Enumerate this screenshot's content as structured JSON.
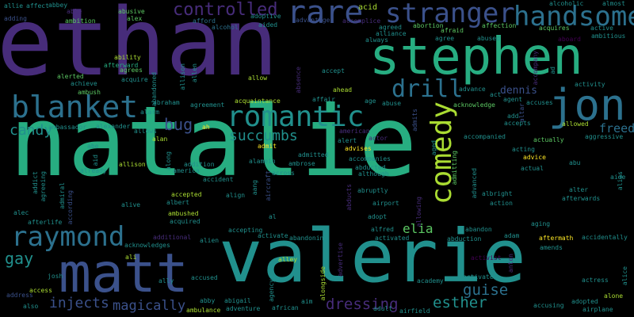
{
  "colors": {
    "background": "#000000",
    "palette": [
      "#440154",
      "#472c7a",
      "#3b518b",
      "#2c718e",
      "#21908d",
      "#27ad81",
      "#5cc863",
      "#aadc32",
      "#fde725"
    ]
  },
  "words": [
    {
      "text": "natalie",
      "color": "#27ad81"
    },
    {
      "text": "ethan",
      "color": "#472c7a"
    },
    {
      "text": "stephen",
      "color": "#27ad81"
    },
    {
      "text": "valerie",
      "color": "#21908d"
    },
    {
      "text": "matt",
      "color": "#3b518b"
    },
    {
      "text": "jon",
      "color": "#2c718e"
    },
    {
      "text": "handsome",
      "color": "#2c718e"
    },
    {
      "text": "stranger",
      "color": "#3b518b"
    },
    {
      "text": "rare",
      "color": "#3b518b"
    },
    {
      "text": "blanket",
      "color": "#2c718e"
    },
    {
      "text": "romantic",
      "color": "#21908d"
    },
    {
      "text": "drill",
      "color": "#2c718e"
    },
    {
      "text": "comedy",
      "color": "#aadc32"
    },
    {
      "text": "raymond",
      "color": "#2c718e"
    },
    {
      "text": "controlled",
      "color": "#472c7a"
    },
    {
      "text": "bug",
      "color": "#3b518b"
    },
    {
      "text": "succumbs",
      "color": "#21908d"
    },
    {
      "text": "candy",
      "color": "#21908d"
    },
    {
      "text": "gay",
      "color": "#21908d"
    },
    {
      "text": "injects",
      "color": "#3b518b"
    },
    {
      "text": "magically",
      "color": "#3b518b"
    },
    {
      "text": "dressing",
      "color": "#472c7a"
    },
    {
      "text": "esther",
      "color": "#21908d"
    },
    {
      "text": "guise",
      "color": "#2c718e"
    },
    {
      "text": "elia",
      "color": "#5cc863"
    },
    {
      "text": "freed",
      "color": "#2c718e"
    },
    {
      "text": "dennis",
      "color": "#3b518b"
    },
    {
      "text": "acid",
      "color": "#aadc32"
    },
    {
      "text": "alcoholic",
      "color": "#21908d"
    },
    {
      "text": "almost",
      "color": "#21908d"
    },
    {
      "text": "allie",
      "color": "#21908d"
    },
    {
      "text": "affect",
      "color": "#21908d"
    },
    {
      "text": "abbey",
      "color": "#21908d"
    },
    {
      "text": "able",
      "color": "#472c7a"
    },
    {
      "text": "abusive",
      "color": "#5cc863"
    },
    {
      "text": "alex",
      "color": "#5cc863"
    },
    {
      "text": "adding",
      "color": "#3b518b"
    },
    {
      "text": "ambition",
      "color": "#5cc863"
    },
    {
      "text": "afford",
      "color": "#2c718e"
    },
    {
      "text": "alcohol",
      "color": "#2c718e"
    },
    {
      "text": "adoptive",
      "color": "#21908d"
    },
    {
      "text": "aided",
      "color": "#21908d"
    },
    {
      "text": "advantage",
      "color": "#3b518b"
    },
    {
      "text": "accomplice",
      "color": "#472c7a"
    },
    {
      "text": "agreed",
      "color": "#21908d"
    },
    {
      "text": "alliance",
      "color": "#21908d"
    },
    {
      "text": "always",
      "color": "#21908d"
    },
    {
      "text": "abortion",
      "color": "#5cc863"
    },
    {
      "text": "afraid",
      "color": "#5cc863"
    },
    {
      "text": "affection",
      "color": "#5cc863"
    },
    {
      "text": "acquires",
      "color": "#5cc863"
    },
    {
      "text": "active",
      "color": "#21908d"
    },
    {
      "text": "ambitious",
      "color": "#21908d"
    },
    {
      "text": "abused",
      "color": "#21908d"
    },
    {
      "text": "agree",
      "color": "#21908d"
    },
    {
      "text": "aboard",
      "color": "#440154"
    },
    {
      "text": "ability",
      "color": "#aadc32"
    },
    {
      "text": "agrees",
      "color": "#5cc863"
    },
    {
      "text": "afterward",
      "color": "#27ad81"
    },
    {
      "text": "acquire",
      "color": "#21908d"
    },
    {
      "text": "alerted",
      "color": "#5cc863"
    },
    {
      "text": "achieve",
      "color": "#21908d"
    },
    {
      "text": "ambush",
      "color": "#5cc863"
    },
    {
      "text": "allison",
      "color": "#21908d"
    },
    {
      "text": "allen",
      "color": "#21908d"
    },
    {
      "text": "allow",
      "color": "#aadc32"
    },
    {
      "text": "absence",
      "color": "#472c7a"
    },
    {
      "text": "accept",
      "color": "#21908d"
    },
    {
      "text": "advance",
      "color": "#21908d"
    },
    {
      "text": "act",
      "color": "#21908d"
    },
    {
      "text": "activity",
      "color": "#21908d"
    },
    {
      "text": "abandoned",
      "color": "#21908d"
    },
    {
      "text": "abraham",
      "color": "#21908d"
    },
    {
      "text": "agreement",
      "color": "#21908d"
    },
    {
      "text": "acquaintance",
      "color": "#aadc32"
    },
    {
      "text": "affair",
      "color": "#21908d"
    },
    {
      "text": "ahead",
      "color": "#aadc32"
    },
    {
      "text": "age",
      "color": "#21908d"
    },
    {
      "text": "abuse",
      "color": "#21908d"
    },
    {
      "text": "acknowledge",
      "color": "#5cc863"
    },
    {
      "text": "agent",
      "color": "#21908d"
    },
    {
      "text": "accuses",
      "color": "#21908d"
    },
    {
      "text": "altar",
      "color": "#3b518b"
    },
    {
      "text": "accompany",
      "color": "#472c7a"
    },
    {
      "text": "ad",
      "color": "#21908d"
    },
    {
      "text": "alarm",
      "color": "#21908d"
    },
    {
      "text": "ambassador",
      "color": "#21908d"
    },
    {
      "text": "admits",
      "color": "#3b518b"
    },
    {
      "text": "add",
      "color": "#21908d"
    },
    {
      "text": "accepts",
      "color": "#21908d"
    },
    {
      "text": "allowed",
      "color": "#aadc32"
    },
    {
      "text": "alexander",
      "color": "#21908d"
    },
    {
      "text": "allows",
      "color": "#21908d"
    },
    {
      "text": "ah",
      "color": "#fde725"
    },
    {
      "text": "alan",
      "color": "#aadc32"
    },
    {
      "text": "american",
      "color": "#472c7a"
    },
    {
      "text": "actor",
      "color": "#472c7a"
    },
    {
      "text": "alert",
      "color": "#21908d"
    },
    {
      "text": "aggressive",
      "color": "#21908d"
    },
    {
      "text": "actually",
      "color": "#5cc863"
    },
    {
      "text": "accompanied",
      "color": "#21908d"
    },
    {
      "text": "abe",
      "color": "#21908d"
    },
    {
      "text": "aid",
      "color": "#21908d"
    },
    {
      "text": "admit",
      "color": "#fde725"
    },
    {
      "text": "admitted",
      "color": "#21908d"
    },
    {
      "text": "advises",
      "color": "#fde725"
    },
    {
      "text": "aged",
      "color": "#21908d"
    },
    {
      "text": "acting",
      "color": "#21908d"
    },
    {
      "text": "advice",
      "color": "#fde725"
    },
    {
      "text": "abu",
      "color": "#21908d"
    },
    {
      "text": "allison",
      "color": "#aadc32"
    },
    {
      "text": "addition",
      "color": "#21908d"
    },
    {
      "text": "alamein",
      "color": "#21908d"
    },
    {
      "text": "ambrose",
      "color": "#21908d"
    },
    {
      "text": "accompanies",
      "color": "#21908d"
    },
    {
      "text": "admitting",
      "color": "#5cc863"
    },
    {
      "text": "actual",
      "color": "#21908d"
    },
    {
      "text": "already",
      "color": "#21908d"
    },
    {
      "text": "along",
      "color": "#21908d"
    },
    {
      "text": "america",
      "color": "#21908d"
    },
    {
      "text": "accident",
      "color": "#21908d"
    },
    {
      "text": "across",
      "color": "#21908d"
    },
    {
      "text": "abducted",
      "color": "#21908d"
    },
    {
      "text": "although",
      "color": "#21908d"
    },
    {
      "text": "advanced",
      "color": "#21908d"
    },
    {
      "text": "aide",
      "color": "#21908d"
    },
    {
      "text": "alias",
      "color": "#21908d"
    },
    {
      "text": "addict",
      "color": "#21908d"
    },
    {
      "text": "agreeing",
      "color": "#21908d"
    },
    {
      "text": "admiral",
      "color": "#21908d"
    },
    {
      "text": "according",
      "color": "#3b518b"
    },
    {
      "text": "align",
      "color": "#21908d"
    },
    {
      "text": "aang",
      "color": "#21908d"
    },
    {
      "text": "aircraft",
      "color": "#3b518b"
    },
    {
      "text": "abducts",
      "color": "#472c7a"
    },
    {
      "text": "abruptly",
      "color": "#21908d"
    },
    {
      "text": "albright",
      "color": "#21908d"
    },
    {
      "text": "alter",
      "color": "#21908d"
    },
    {
      "text": "afterwards",
      "color": "#21908d"
    },
    {
      "text": "alec",
      "color": "#21908d"
    },
    {
      "text": "afterlife",
      "color": "#21908d"
    },
    {
      "text": "accepted",
      "color": "#aadc32"
    },
    {
      "text": "albert",
      "color": "#21908d"
    },
    {
      "text": "alive",
      "color": "#21908d"
    },
    {
      "text": "airport",
      "color": "#21908d"
    },
    {
      "text": "allowing",
      "color": "#472c7a"
    },
    {
      "text": "action",
      "color": "#21908d"
    },
    {
      "text": "aging",
      "color": "#21908d"
    },
    {
      "text": "adopt",
      "color": "#21908d"
    },
    {
      "text": "al",
      "color": "#21908d"
    },
    {
      "text": "ambushed",
      "color": "#aadc32"
    },
    {
      "text": "acquired",
      "color": "#21908d"
    },
    {
      "text": "alfred",
      "color": "#21908d"
    },
    {
      "text": "abandon",
      "color": "#21908d"
    },
    {
      "text": "accepting",
      "color": "#21908d"
    },
    {
      "text": "activate",
      "color": "#21908d"
    },
    {
      "text": "abandoning",
      "color": "#21908d"
    },
    {
      "text": "activated",
      "color": "#21908d"
    },
    {
      "text": "abduction",
      "color": "#21908d"
    },
    {
      "text": "adam",
      "color": "#21908d"
    },
    {
      "text": "aftermath",
      "color": "#fde725"
    },
    {
      "text": "accidentally",
      "color": "#21908d"
    },
    {
      "text": "additional",
      "color": "#472c7a"
    },
    {
      "text": "acknowledges",
      "color": "#21908d"
    },
    {
      "text": "alien",
      "color": "#21908d"
    },
    {
      "text": "amends",
      "color": "#21908d"
    },
    {
      "text": "ali",
      "color": "#aadc32"
    },
    {
      "text": "alley",
      "color": "#aadc32"
    },
    {
      "text": "activist",
      "color": "#440154"
    },
    {
      "text": "anton",
      "color": "#472c7a"
    },
    {
      "text": "alongside",
      "color": "#aadc32"
    },
    {
      "text": "advertise",
      "color": "#472c7a"
    },
    {
      "text": "alice",
      "color": "#21908d"
    },
    {
      "text": "josh",
      "color": "#21908d"
    },
    {
      "text": "access",
      "color": "#aadc32"
    },
    {
      "text": "ally",
      "color": "#21908d"
    },
    {
      "text": "accused",
      "color": "#21908d"
    },
    {
      "text": "academy",
      "color": "#21908d"
    },
    {
      "text": "activates",
      "color": "#21908d"
    },
    {
      "text": "actress",
      "color": "#21908d"
    },
    {
      "text": "address",
      "color": "#3b518b"
    },
    {
      "text": "agency",
      "color": "#21908d"
    },
    {
      "text": "abby",
      "color": "#21908d"
    },
    {
      "text": "abigail",
      "color": "#21908d"
    },
    {
      "text": "accusing",
      "color": "#21908d"
    },
    {
      "text": "adopted",
      "color": "#21908d"
    },
    {
      "text": "alone",
      "color": "#aadc32"
    },
    {
      "text": "also",
      "color": "#21908d"
    },
    {
      "text": "ambulance",
      "color": "#aadc32"
    },
    {
      "text": "adventure",
      "color": "#21908d"
    },
    {
      "text": "african",
      "color": "#21908d"
    },
    {
      "text": "aim",
      "color": "#21908d"
    },
    {
      "text": "adult",
      "color": "#21908d"
    },
    {
      "text": "airfield",
      "color": "#21908d"
    },
    {
      "text": "airplane",
      "color": "#21908d"
    }
  ]
}
